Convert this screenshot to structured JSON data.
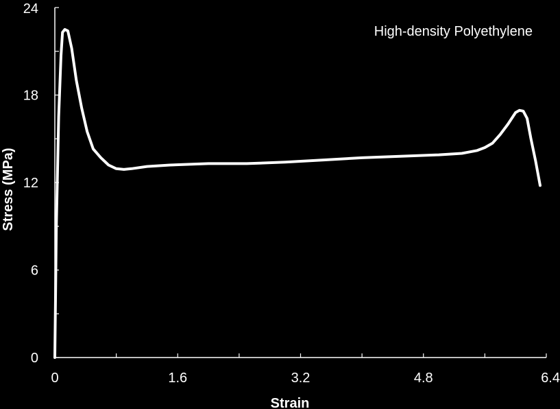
{
  "chart_data": {
    "type": "line",
    "xlabel": "Strain",
    "ylabel": "Stress (MPa)",
    "xlim": [
      0,
      6.4
    ],
    "ylim": [
      0,
      24
    ],
    "x_ticks": [
      "0",
      "1.6",
      "3.2",
      "4.8",
      "6.4"
    ],
    "x_tick_values": [
      0,
      1.6,
      3.2,
      4.8,
      6.4
    ],
    "y_ticks": [
      "0",
      "6",
      "12",
      "18",
      "24"
    ],
    "y_tick_values": [
      0,
      6,
      12,
      18,
      24
    ],
    "grid": false,
    "legend_placement": "top-right",
    "background_color": "#000000",
    "foreground_color": "#ffffff",
    "series": [
      {
        "name": "High-density Polyethylene",
        "color": "#ffffff",
        "x": [
          0,
          0.02,
          0.05,
          0.08,
          0.1,
          0.13,
          0.17,
          0.22,
          0.28,
          0.35,
          0.42,
          0.5,
          0.6,
          0.7,
          0.8,
          0.9,
          1.0,
          1.2,
          1.5,
          2.0,
          2.5,
          3.0,
          3.5,
          4.0,
          4.5,
          5.0,
          5.3,
          5.5,
          5.6,
          5.7,
          5.8,
          5.9,
          6.0,
          6.05,
          6.1,
          6.15,
          6.2,
          6.26,
          6.32
        ],
        "y": [
          0,
          9.0,
          16.5,
          20.7,
          22.3,
          22.5,
          22.4,
          21.2,
          19.0,
          17.1,
          15.5,
          14.3,
          13.7,
          13.2,
          12.95,
          12.9,
          12.95,
          13.1,
          13.2,
          13.3,
          13.3,
          13.4,
          13.55,
          13.7,
          13.8,
          13.9,
          14.0,
          14.2,
          14.4,
          14.7,
          15.3,
          16.0,
          16.8,
          16.95,
          16.9,
          16.4,
          15.0,
          13.5,
          11.8
        ]
      }
    ]
  }
}
